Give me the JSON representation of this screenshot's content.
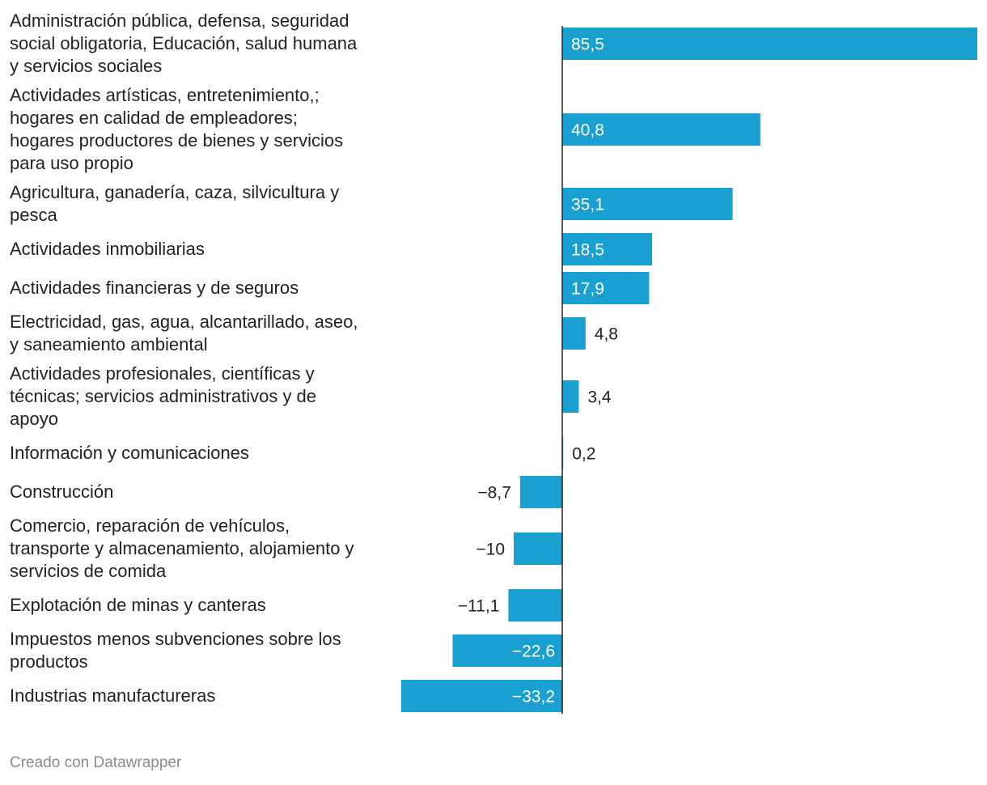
{
  "chart_data": {
    "type": "bar",
    "orientation": "horizontal",
    "bar_color": "#1aa0d0",
    "xlim": [
      -33.2,
      85.5
    ],
    "categories": [
      [
        "Administración pública, defensa, seguridad",
        "social obligatoria, Educación, salud humana",
        "y servicios sociales"
      ],
      [
        "Actividades artísticas, entretenimiento,;",
        "hogares en calidad de empleadores;",
        "hogares productores de bienes y servicios",
        "para uso propio"
      ],
      [
        "Agricultura, ganadería, caza, silvicultura y",
        "pesca"
      ],
      [
        "Actividades inmobiliarias"
      ],
      [
        "Actividades financieras y de seguros"
      ],
      [
        "Electricidad, gas, agua, alcantarillado, aseo,",
        "y saneamiento ambiental"
      ],
      [
        "Actividades profesionales, científicas y",
        "técnicas; servicios administrativos y de",
        "apoyo"
      ],
      [
        "Información y comunicaciones"
      ],
      [
        "Construcción"
      ],
      [
        "Comercio, reparación de vehículos,",
        "transporte y almacenamiento, alojamiento y",
        "servicios de comida"
      ],
      [
        "Explotación de minas y canteras"
      ],
      [
        "Impuestos menos subvenciones sobre los",
        "productos"
      ],
      [
        "Industrias manufactureras"
      ]
    ],
    "values": [
      85.5,
      40.8,
      35.1,
      18.5,
      17.9,
      4.8,
      3.4,
      0.2,
      -8.7,
      -10,
      -11.1,
      -22.6,
      -33.2
    ],
    "value_labels": [
      "85,5",
      "40,8",
      "35,1",
      "18,5",
      "17,9",
      "4,8",
      "3,4",
      "0,2",
      "−8,7",
      "−10",
      "−11,1",
      "−22,6",
      "−33,2"
    ]
  },
  "footer": "Creado con Datawrapper"
}
